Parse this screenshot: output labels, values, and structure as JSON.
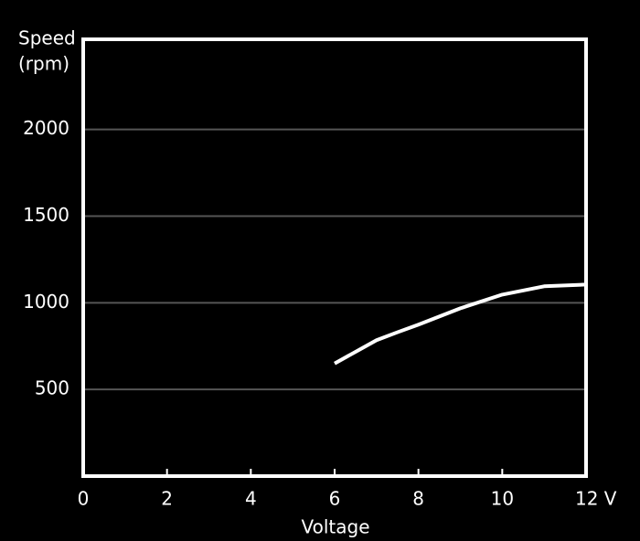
{
  "chart_data": {
    "type": "line",
    "y_label_lines": [
      "Speed",
      "(rpm)"
    ],
    "x_label": "Voltage",
    "x": [
      6,
      7,
      7.5,
      8,
      9,
      10,
      11,
      12
    ],
    "series": [
      {
        "color": "#ffffff",
        "values": [
          650,
          784,
          830,
          874,
          968,
          1047,
          1095,
          1105
        ]
      }
    ],
    "xlim": [
      0,
      12
    ],
    "xticks": [
      0,
      2,
      4,
      6,
      8,
      10,
      {
        "value": 12,
        "label": "12 V"
      }
    ],
    "ylim": [
      0,
      2520
    ],
    "yticks": [
      500,
      1000,
      1500,
      2000
    ],
    "grid": true
  }
}
